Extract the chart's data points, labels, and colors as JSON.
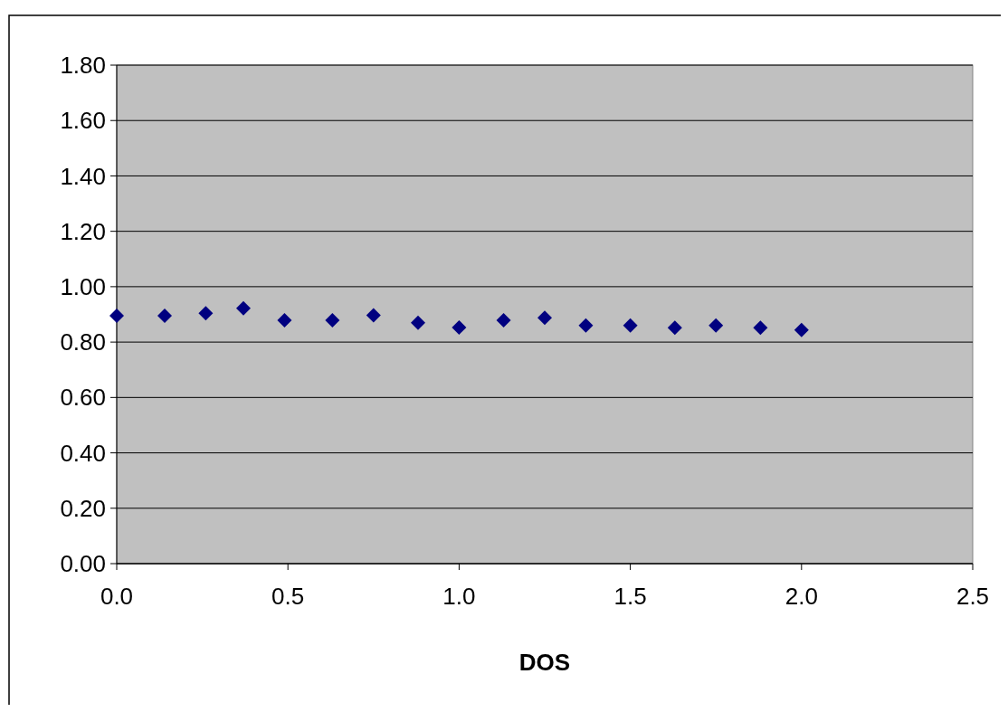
{
  "chart_data": {
    "type": "scatter",
    "xlabel": "DOS",
    "x": [
      0,
      0.14,
      0.26,
      0.37,
      0.49,
      0.63,
      0.75,
      0.88,
      1.0,
      1.13,
      1.25,
      1.37,
      1.5,
      1.63,
      1.75,
      1.88,
      2.0
    ],
    "series": [
      {
        "color": "#000080",
        "values": [
          0.895,
          0.895,
          0.904,
          0.922,
          0.879,
          0.879,
          0.897,
          0.87,
          0.853,
          0.879,
          0.888,
          0.86,
          0.86,
          0.852,
          0.86,
          0.852,
          0.844
        ]
      }
    ],
    "xlim": [
      0,
      2.5
    ],
    "xticks": [
      {
        "value": 0,
        "label": "0.0"
      },
      {
        "value": 0.5,
        "label": "0.5"
      },
      {
        "value": 1,
        "label": "1.0"
      },
      {
        "value": 1.5,
        "label": "1.5"
      },
      {
        "value": 2,
        "label": "2.0"
      },
      {
        "value": 2.5,
        "label": "2.5"
      }
    ],
    "ylim": [
      0,
      1.8
    ],
    "yticks": [
      {
        "value": 0,
        "label": "0.00"
      },
      {
        "value": 0.2,
        "label": "0.20"
      },
      {
        "value": 0.4,
        "label": "0.40"
      },
      {
        "value": 0.6,
        "label": "0.60"
      },
      {
        "value": 0.8,
        "label": "0.80"
      },
      {
        "value": 1,
        "label": "1.00"
      },
      {
        "value": 1.2,
        "label": "1.20"
      },
      {
        "value": 1.4,
        "label": "1.40"
      },
      {
        "value": 1.6,
        "label": "1.60"
      },
      {
        "value": 1.8,
        "label": "1.80"
      }
    ],
    "grid": "y",
    "marker": "diamond"
  }
}
